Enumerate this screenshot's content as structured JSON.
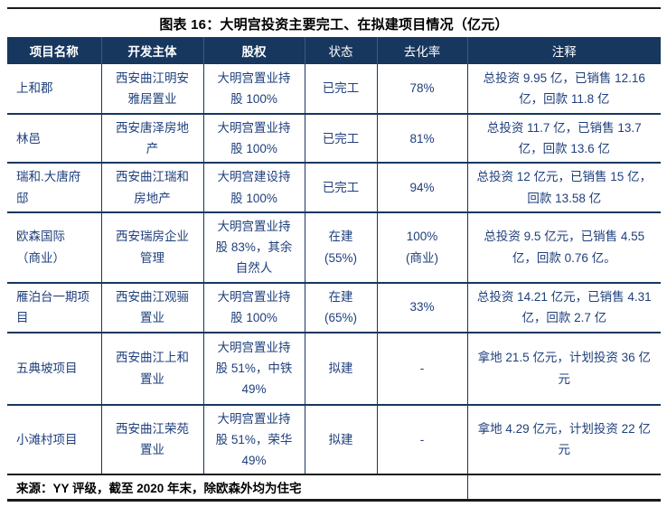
{
  "title": "图表 16：大明宫投资主要完工、在拟建项目情况（亿元）",
  "colors": {
    "header_bg": "#17375E",
    "body_text": "#20407C",
    "grid_line": "#17375E",
    "rule": "#1A1A1A"
  },
  "table": {
    "columns": [
      "项目名称",
      "开发主体",
      "股权",
      "状态",
      "去化率",
      "注释"
    ],
    "rows": [
      {
        "name": "上和郡",
        "developer": "西安曲江明安雅居置业",
        "equity": "大明宫置业持股 100%",
        "status": "已完工",
        "rate": "78%",
        "note": "总投资 9.95 亿，已销售 12.16 亿，回款 11.8 亿"
      },
      {
        "name": "林邑",
        "developer": "西安唐泽房地产",
        "equity": "大明宫置业持股 100%",
        "status": "已完工",
        "rate": "81%",
        "note": "总投资 11.7 亿，已销售 13.7 亿，回款 13.6 亿"
      },
      {
        "name": "瑞和.大唐府邸",
        "developer": "西安曲江瑞和房地产",
        "equity": "大明宫建设持股 100%",
        "status": "已完工",
        "rate": "94%",
        "note": "总投资 12 亿元，已销售 15 亿，回款 13.58 亿"
      },
      {
        "name": "欧森国际\n（商业）",
        "developer": "西安瑞房企业管理",
        "equity": "大明宫置业持股 83%，其余自然人",
        "status": "在建\n(55%)",
        "rate": "100%\n(商业)",
        "note": "总投资 9.5 亿元，已销售 4.55 亿，回款 0.76 亿。"
      },
      {
        "name": "雁泊台一期项目",
        "developer": "西安曲江观骊置业",
        "equity": "大明宫置业持股 100%",
        "status": "在建\n(65%)",
        "rate": "33%",
        "note": "总投资 14.21 亿元，已销售 4.31 亿，回款 2.7 亿"
      },
      {
        "name": "五典坡项目",
        "developer": "西安曲江上和置业",
        "equity": "大明宫置业持股 51%，中铁 49%",
        "status": "拟建",
        "rate": "-",
        "note": "拿地 21.5 亿元，计划投资 36 亿元"
      },
      {
        "name": "小滩村项目",
        "developer": "西安曲江荣苑置业",
        "equity": "大明宫置业持股 51%，荣华 49%",
        "status": "拟建",
        "rate": "-",
        "note": "拿地 4.29 亿元，计划投资 22 亿元"
      }
    ],
    "source": "来源：YY 评级，截至 2020 年末，除欧森外均为住宅"
  }
}
